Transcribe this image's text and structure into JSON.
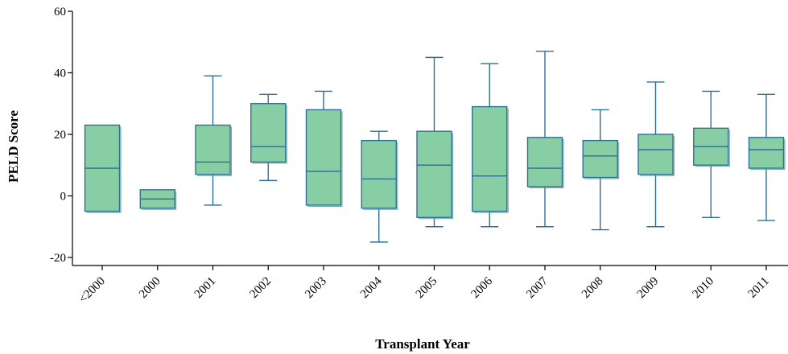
{
  "chart_data": {
    "type": "boxplot",
    "title": "",
    "xlabel": "Transplant Year",
    "ylabel": "PELD Score",
    "ylim": [
      -23,
      60
    ],
    "yticks": [
      -20,
      0,
      20,
      40,
      60
    ],
    "grid": false,
    "legend": "none",
    "categories": [
      "<2000",
      "2000",
      "2001",
      "2002",
      "2003",
      "2004",
      "2005",
      "2006",
      "2007",
      "2008",
      "2009",
      "2010",
      "2011"
    ],
    "boxes": [
      {
        "category": "<2000",
        "min": -5,
        "q1": -5,
        "median": 9,
        "q3": 23,
        "max": 23
      },
      {
        "category": "2000",
        "min": -4,
        "q1": -4,
        "median": -1,
        "q3": 2,
        "max": 2
      },
      {
        "category": "2001",
        "min": -3,
        "q1": 7,
        "median": 11,
        "q3": 23,
        "max": 39
      },
      {
        "category": "2002",
        "min": 5,
        "q1": 11,
        "median": 16,
        "q3": 30,
        "max": 33
      },
      {
        "category": "2003",
        "min": -3,
        "q1": -3,
        "median": 8,
        "q3": 28,
        "max": 34
      },
      {
        "category": "2004",
        "min": -15,
        "q1": -4,
        "median": 5.5,
        "q3": 18,
        "max": 21
      },
      {
        "category": "2005",
        "min": -10,
        "q1": -7,
        "median": 10,
        "q3": 21,
        "max": 45
      },
      {
        "category": "2006",
        "min": -10,
        "q1": -5,
        "median": 6.5,
        "q3": 29,
        "max": 43
      },
      {
        "category": "2007",
        "min": -10,
        "q1": 3,
        "median": 9,
        "q3": 19,
        "max": 47
      },
      {
        "category": "2008",
        "min": -11,
        "q1": 6,
        "median": 13,
        "q3": 18,
        "max": 28
      },
      {
        "category": "2009",
        "min": -10,
        "q1": 7,
        "median": 15,
        "q3": 20,
        "max": 37
      },
      {
        "category": "2010",
        "min": -7,
        "q1": 10,
        "median": 16,
        "q3": 22,
        "max": 34
      },
      {
        "category": "2011",
        "min": -8,
        "q1": 9,
        "median": 15,
        "q3": 19,
        "max": 33
      }
    ],
    "colors": {
      "box_fill": "#88ceA4",
      "box_stroke": "#2f6f96",
      "median": "#2f6f96",
      "whisker": "#2f6f96",
      "axis": "#000000"
    }
  }
}
